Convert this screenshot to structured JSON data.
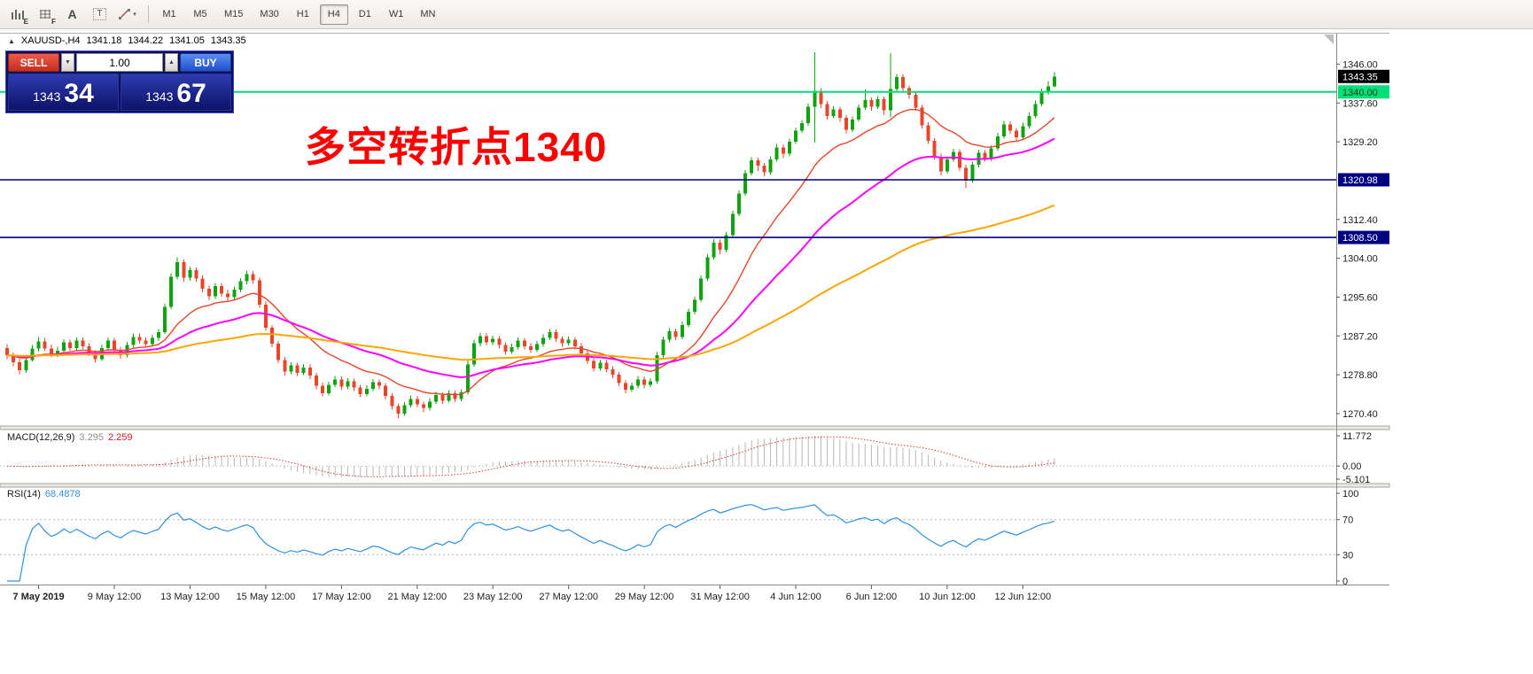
{
  "toolbar": {
    "icons": [
      {
        "name": "indicators-icon",
        "glyph": "E"
      },
      {
        "name": "grid-icon",
        "glyph": "F"
      },
      {
        "name": "text-label-icon",
        "glyph": "A"
      },
      {
        "name": "text-box-icon",
        "glyph": "T"
      },
      {
        "name": "draw-tools-icon",
        "glyph": "▾"
      }
    ],
    "timeframes": [
      "M1",
      "M5",
      "M15",
      "M30",
      "H1",
      "H4",
      "D1",
      "W1",
      "MN"
    ],
    "active_timeframe": "H4"
  },
  "chart_header": {
    "collapse_icon": "▲",
    "title": "XAUUSD-,H4",
    "open": "1341.18",
    "high": "1344.22",
    "low": "1341.05",
    "close": "1343.35"
  },
  "trade_panel": {
    "sell_label": "SELL",
    "buy_label": "BUY",
    "lot_value": "1.00",
    "spin_down": "▼",
    "spin_up": "▲",
    "bid_main": "1343",
    "bid_pips": "34",
    "ask_main": "1343",
    "ask_pips": "67"
  },
  "annotation": {
    "text": "多空转折点1340",
    "color": "#fd0000"
  },
  "chart_data": {
    "type": "candlestick",
    "symbol": "XAUUSD-",
    "timeframe": "H4",
    "up_color": "#0fa30f",
    "down_color": "#e8452a",
    "candles": [
      [
        1284.6,
        1285.4,
        1282.2,
        1283.0
      ],
      [
        1283.0,
        1283.6,
        1280.6,
        1281.5
      ],
      [
        1281.5,
        1282.2,
        1278.9,
        1279.8
      ],
      [
        1279.8,
        1282.8,
        1279.2,
        1282.0
      ],
      [
        1282.0,
        1285.2,
        1281.6,
        1284.5
      ],
      [
        1284.5,
        1287.0,
        1283.8,
        1286.0
      ],
      [
        1286.0,
        1286.8,
        1283.9,
        1284.5
      ],
      [
        1284.5,
        1285.3,
        1282.6,
        1283.2
      ],
      [
        1283.2,
        1284.9,
        1282.7,
        1284.0
      ],
      [
        1284.0,
        1286.5,
        1283.5,
        1285.8
      ],
      [
        1285.8,
        1286.4,
        1283.9,
        1284.6
      ],
      [
        1284.6,
        1286.9,
        1284.1,
        1286.2
      ],
      [
        1286.2,
        1286.9,
        1284.4,
        1285.0
      ],
      [
        1285.0,
        1285.6,
        1282.8,
        1283.4
      ],
      [
        1283.4,
        1284.1,
        1281.5,
        1282.2
      ],
      [
        1282.2,
        1285.3,
        1281.8,
        1284.6
      ],
      [
        1284.6,
        1286.9,
        1284.0,
        1286.2
      ],
      [
        1286.2,
        1286.8,
        1283.6,
        1284.2
      ],
      [
        1284.2,
        1284.9,
        1282.3,
        1283.0
      ],
      [
        1283.0,
        1285.9,
        1282.6,
        1285.2
      ],
      [
        1285.2,
        1287.7,
        1284.7,
        1287.0
      ],
      [
        1287.0,
        1287.7,
        1285.5,
        1286.2
      ],
      [
        1286.2,
        1286.9,
        1284.7,
        1285.4
      ],
      [
        1285.4,
        1287.4,
        1284.9,
        1286.8
      ],
      [
        1286.8,
        1288.7,
        1286.1,
        1288.0
      ],
      [
        1288.0,
        1294.2,
        1287.6,
        1293.5
      ],
      [
        1293.5,
        1300.8,
        1293.0,
        1300.0
      ],
      [
        1300.0,
        1304.2,
        1299.4,
        1303.2
      ],
      [
        1303.2,
        1303.8,
        1298.9,
        1299.8
      ],
      [
        1299.8,
        1302.2,
        1299.1,
        1301.4
      ],
      [
        1301.4,
        1302.0,
        1298.9,
        1299.6
      ],
      [
        1299.6,
        1300.3,
        1296.6,
        1297.4
      ],
      [
        1297.4,
        1298.1,
        1294.9,
        1295.8
      ],
      [
        1295.8,
        1298.7,
        1295.2,
        1298.0
      ],
      [
        1298.0,
        1298.7,
        1295.7,
        1296.4
      ],
      [
        1296.4,
        1297.2,
        1294.8,
        1295.6
      ],
      [
        1295.6,
        1297.9,
        1295.0,
        1297.2
      ],
      [
        1297.2,
        1299.7,
        1296.6,
        1299.0
      ],
      [
        1299.0,
        1301.3,
        1298.4,
        1300.6
      ],
      [
        1300.6,
        1301.2,
        1298.5,
        1299.2
      ],
      [
        1299.2,
        1299.8,
        1293.3,
        1294.0
      ],
      [
        1294.0,
        1294.7,
        1288.3,
        1289.0
      ],
      [
        1289.0,
        1289.6,
        1284.8,
        1285.5
      ],
      [
        1285.5,
        1286.1,
        1281.3,
        1282.0
      ],
      [
        1282.0,
        1282.7,
        1278.6,
        1279.5
      ],
      [
        1279.5,
        1281.5,
        1278.9,
        1280.8
      ],
      [
        1280.8,
        1281.4,
        1278.5,
        1279.2
      ],
      [
        1279.2,
        1281.1,
        1278.7,
        1280.4
      ],
      [
        1280.4,
        1281.0,
        1277.9,
        1278.6
      ],
      [
        1278.6,
        1279.2,
        1275.7,
        1276.4
      ],
      [
        1276.4,
        1277.1,
        1274.1,
        1274.8
      ],
      [
        1274.8,
        1277.3,
        1274.3,
        1276.6
      ],
      [
        1276.6,
        1278.5,
        1276.1,
        1277.8
      ],
      [
        1277.8,
        1278.4,
        1275.5,
        1276.2
      ],
      [
        1276.2,
        1278.1,
        1275.7,
        1277.4
      ],
      [
        1277.4,
        1278.0,
        1275.3,
        1276.0
      ],
      [
        1276.0,
        1276.6,
        1273.9,
        1274.6
      ],
      [
        1274.6,
        1276.5,
        1274.1,
        1275.8
      ],
      [
        1275.8,
        1277.9,
        1275.3,
        1277.2
      ],
      [
        1277.2,
        1277.8,
        1275.7,
        1276.4
      ],
      [
        1276.4,
        1277.0,
        1273.5,
        1274.2
      ],
      [
        1274.2,
        1274.8,
        1271.3,
        1272.0
      ],
      [
        1272.0,
        1272.6,
        1269.3,
        1270.4
      ],
      [
        1270.4,
        1272.9,
        1269.9,
        1272.2
      ],
      [
        1272.2,
        1274.3,
        1271.7,
        1273.6
      ],
      [
        1273.6,
        1274.2,
        1271.7,
        1272.4
      ],
      [
        1272.4,
        1273.0,
        1270.7,
        1271.6
      ],
      [
        1271.6,
        1273.7,
        1271.1,
        1273.0
      ],
      [
        1273.0,
        1275.1,
        1272.5,
        1274.4
      ],
      [
        1274.4,
        1275.0,
        1272.5,
        1273.2
      ],
      [
        1273.2,
        1275.5,
        1272.8,
        1274.8
      ],
      [
        1274.8,
        1275.4,
        1272.9,
        1273.6
      ],
      [
        1273.6,
        1275.7,
        1273.1,
        1275.0
      ],
      [
        1275.0,
        1281.9,
        1274.5,
        1281.0
      ],
      [
        1281.0,
        1286.4,
        1280.5,
        1285.6
      ],
      [
        1285.6,
        1287.9,
        1285.0,
        1287.2
      ],
      [
        1287.2,
        1287.8,
        1285.1,
        1285.8
      ],
      [
        1285.8,
        1287.3,
        1285.2,
        1286.6
      ],
      [
        1286.6,
        1287.2,
        1284.5,
        1285.2
      ],
      [
        1285.2,
        1285.8,
        1283.1,
        1283.8
      ],
      [
        1283.8,
        1285.5,
        1283.3,
        1284.8
      ],
      [
        1284.8,
        1286.9,
        1284.3,
        1286.2
      ],
      [
        1286.2,
        1286.8,
        1284.3,
        1285.0
      ],
      [
        1285.0,
        1285.6,
        1283.5,
        1284.2
      ],
      [
        1284.2,
        1286.1,
        1283.7,
        1285.4
      ],
      [
        1285.4,
        1287.5,
        1284.9,
        1286.8
      ],
      [
        1286.8,
        1288.7,
        1286.3,
        1288.0
      ],
      [
        1288.0,
        1288.6,
        1285.9,
        1286.6
      ],
      [
        1286.6,
        1287.2,
        1284.9,
        1285.6
      ],
      [
        1285.6,
        1287.1,
        1285.1,
        1286.4
      ],
      [
        1286.4,
        1287.0,
        1284.3,
        1285.0
      ],
      [
        1285.0,
        1285.6,
        1282.7,
        1283.4
      ],
      [
        1283.4,
        1284.0,
        1281.1,
        1281.8
      ],
      [
        1281.8,
        1282.4,
        1279.5,
        1280.2
      ],
      [
        1280.2,
        1282.1,
        1279.7,
        1281.4
      ],
      [
        1281.4,
        1282.0,
        1279.3,
        1280.0
      ],
      [
        1280.0,
        1280.6,
        1278.1,
        1278.8
      ],
      [
        1278.8,
        1279.4,
        1276.3,
        1277.0
      ],
      [
        1277.0,
        1277.6,
        1274.8,
        1275.6
      ],
      [
        1275.6,
        1277.1,
        1275.1,
        1276.4
      ],
      [
        1276.4,
        1278.5,
        1275.9,
        1277.8
      ],
      [
        1277.8,
        1278.4,
        1275.9,
        1276.6
      ],
      [
        1276.6,
        1278.1,
        1276.1,
        1277.4
      ],
      [
        1277.4,
        1283.7,
        1276.9,
        1283.0
      ],
      [
        1283.0,
        1287.1,
        1282.5,
        1286.4
      ],
      [
        1286.4,
        1288.9,
        1285.8,
        1288.2
      ],
      [
        1288.2,
        1288.8,
        1286.3,
        1287.0
      ],
      [
        1287.0,
        1290.3,
        1286.5,
        1289.6
      ],
      [
        1289.6,
        1293.1,
        1289.1,
        1292.4
      ],
      [
        1292.4,
        1295.7,
        1291.9,
        1295.0
      ],
      [
        1295.0,
        1300.3,
        1294.5,
        1299.6
      ],
      [
        1299.6,
        1304.9,
        1299.1,
        1304.2
      ],
      [
        1304.2,
        1308.1,
        1303.7,
        1307.4
      ],
      [
        1307.4,
        1308.0,
        1304.9,
        1305.8
      ],
      [
        1305.8,
        1309.7,
        1305.3,
        1309.0
      ],
      [
        1309.0,
        1314.3,
        1308.5,
        1313.6
      ],
      [
        1313.6,
        1318.7,
        1313.1,
        1318.0
      ],
      [
        1318.0,
        1323.1,
        1317.5,
        1322.4
      ],
      [
        1322.4,
        1325.9,
        1321.9,
        1325.2
      ],
      [
        1325.2,
        1325.8,
        1322.9,
        1324.0
      ],
      [
        1324.0,
        1324.6,
        1321.7,
        1322.6
      ],
      [
        1322.6,
        1326.1,
        1322.1,
        1325.4
      ],
      [
        1325.4,
        1328.7,
        1324.9,
        1328.0
      ],
      [
        1328.0,
        1328.6,
        1325.7,
        1326.6
      ],
      [
        1326.6,
        1329.9,
        1326.1,
        1329.2
      ],
      [
        1329.2,
        1332.3,
        1328.7,
        1331.6
      ],
      [
        1331.6,
        1333.9,
        1331.1,
        1333.2
      ],
      [
        1333.2,
        1337.5,
        1332.7,
        1336.8
      ],
      [
        1336.8,
        1348.6,
        1329.0,
        1340.2
      ],
      [
        1340.2,
        1340.8,
        1336.5,
        1337.4
      ],
      [
        1337.4,
        1338.0,
        1334.0,
        1334.8
      ],
      [
        1334.8,
        1336.9,
        1334.3,
        1336.2
      ],
      [
        1336.2,
        1336.8,
        1333.5,
        1334.4
      ],
      [
        1334.4,
        1335.0,
        1331.0,
        1331.8
      ],
      [
        1331.8,
        1334.7,
        1331.3,
        1334.0
      ],
      [
        1334.0,
        1337.3,
        1333.5,
        1336.6
      ],
      [
        1336.6,
        1340.5,
        1336.1,
        1338.2
      ],
      [
        1338.2,
        1338.8,
        1335.9,
        1336.8
      ],
      [
        1336.8,
        1339.1,
        1336.3,
        1338.4
      ],
      [
        1338.4,
        1339.0,
        1335.1,
        1336.0
      ],
      [
        1336.0,
        1348.4,
        1334.5,
        1340.6
      ],
      [
        1340.6,
        1343.9,
        1340.1,
        1343.2
      ],
      [
        1343.2,
        1343.8,
        1340.1,
        1340.8
      ],
      [
        1340.8,
        1341.4,
        1338.5,
        1339.4
      ],
      [
        1339.4,
        1340.0,
        1335.9,
        1336.6
      ],
      [
        1336.6,
        1337.2,
        1332.1,
        1332.8
      ],
      [
        1332.8,
        1333.4,
        1328.7,
        1329.4
      ],
      [
        1329.4,
        1330.0,
        1325.3,
        1326.0
      ],
      [
        1326.0,
        1326.6,
        1321.9,
        1322.8
      ],
      [
        1322.8,
        1326.1,
        1322.3,
        1325.4
      ],
      [
        1325.4,
        1327.7,
        1324.9,
        1327.0
      ],
      [
        1327.0,
        1327.6,
        1322.9,
        1323.6
      ],
      [
        1323.6,
        1324.2,
        1319.2,
        1320.8
      ],
      [
        1320.8,
        1324.9,
        1320.3,
        1324.2
      ],
      [
        1324.2,
        1327.5,
        1323.7,
        1326.8
      ],
      [
        1326.8,
        1327.4,
        1324.9,
        1325.6
      ],
      [
        1325.6,
        1328.5,
        1325.1,
        1327.8
      ],
      [
        1327.8,
        1331.1,
        1327.3,
        1330.4
      ],
      [
        1330.4,
        1333.7,
        1329.9,
        1333.0
      ],
      [
        1333.0,
        1333.6,
        1330.9,
        1331.6
      ],
      [
        1331.6,
        1332.2,
        1329.5,
        1330.2
      ],
      [
        1330.2,
        1333.3,
        1329.7,
        1332.6
      ],
      [
        1332.6,
        1335.5,
        1332.1,
        1334.8
      ],
      [
        1334.8,
        1338.1,
        1334.3,
        1337.4
      ],
      [
        1337.4,
        1340.7,
        1336.9,
        1340.0
      ],
      [
        1340.0,
        1342.3,
        1339.4,
        1341.2
      ],
      [
        1341.2,
        1344.22,
        1341.05,
        1343.35
      ]
    ],
    "moving_averages": [
      {
        "name": "fast-ma-line",
        "period": 16,
        "color": "#e8452a",
        "width": 1.4
      },
      {
        "name": "mid-ma-line",
        "period": 38,
        "color": "#ff00ff",
        "width": 2
      },
      {
        "name": "slow-ma-line",
        "period": 100,
        "color": "#ffa500",
        "width": 2
      }
    ],
    "horizontal_lines": [
      {
        "price": 1340.0,
        "label": "1340.00",
        "color": "#00df78",
        "width": 2,
        "tag_text": "#003a1d"
      },
      {
        "price": 1320.98,
        "label": "1320.98",
        "color": "#000080",
        "width": 1.6,
        "tag_text": "#ffffff"
      },
      {
        "price": 1308.5,
        "label": "1308.50",
        "color": "#000080",
        "width": 1.6,
        "tag_text": "#ffffff"
      }
    ],
    "current_price": {
      "value": 1343.35,
      "label": "1343.35",
      "bg": "#000000",
      "fg": "#ffffff"
    },
    "y_axis_labels": [
      "1346.00",
      "1337.60",
      "1329.20",
      "1312.40",
      "1304.00",
      "1295.60",
      "1287.20",
      "1278.80",
      "1270.40"
    ],
    "x_axis_labels": [
      {
        "text": "7 May 2019",
        "index": 5,
        "bold": true
      },
      {
        "text": "9 May 12:00",
        "index": 17
      },
      {
        "text": "13 May 12:00",
        "index": 29
      },
      {
        "text": "15 May 12:00",
        "index": 41
      },
      {
        "text": "17 May 12:00",
        "index": 53
      },
      {
        "text": "21 May 12:00",
        "index": 65
      },
      {
        "text": "23 May 12:00",
        "index": 77
      },
      {
        "text": "27 May 12:00",
        "index": 89
      },
      {
        "text": "29 May 12:00",
        "index": 101
      },
      {
        "text": "31 May 12:00",
        "index": 113
      },
      {
        "text": "4 Jun 12:00",
        "index": 125
      },
      {
        "text": "6 Jun 12:00",
        "index": 137
      },
      {
        "text": "10 Jun 12:00",
        "index": 149
      },
      {
        "text": "12 Jun 12:00",
        "index": 161
      }
    ],
    "indicators": [
      {
        "id": "macd",
        "label": "MACD(12,26,9)",
        "value_main": "3.295",
        "value_signal": "2.259",
        "fast": 12,
        "slow": 26,
        "signal": 9,
        "axis_labels": [
          "11.772",
          "0.00",
          "-5.101"
        ],
        "axis_max": 11.772,
        "axis_min": -5.101,
        "hist_color": "#bdbdbd",
        "signal_color": "#e03a2f"
      },
      {
        "id": "rsi",
        "label": "RSI(14)",
        "value": "68.4878",
        "period": 14,
        "levels": [
          70,
          30
        ],
        "axis_labels": [
          "100",
          "70",
          "30",
          "0"
        ],
        "color": "#2e90e5"
      }
    ]
  }
}
